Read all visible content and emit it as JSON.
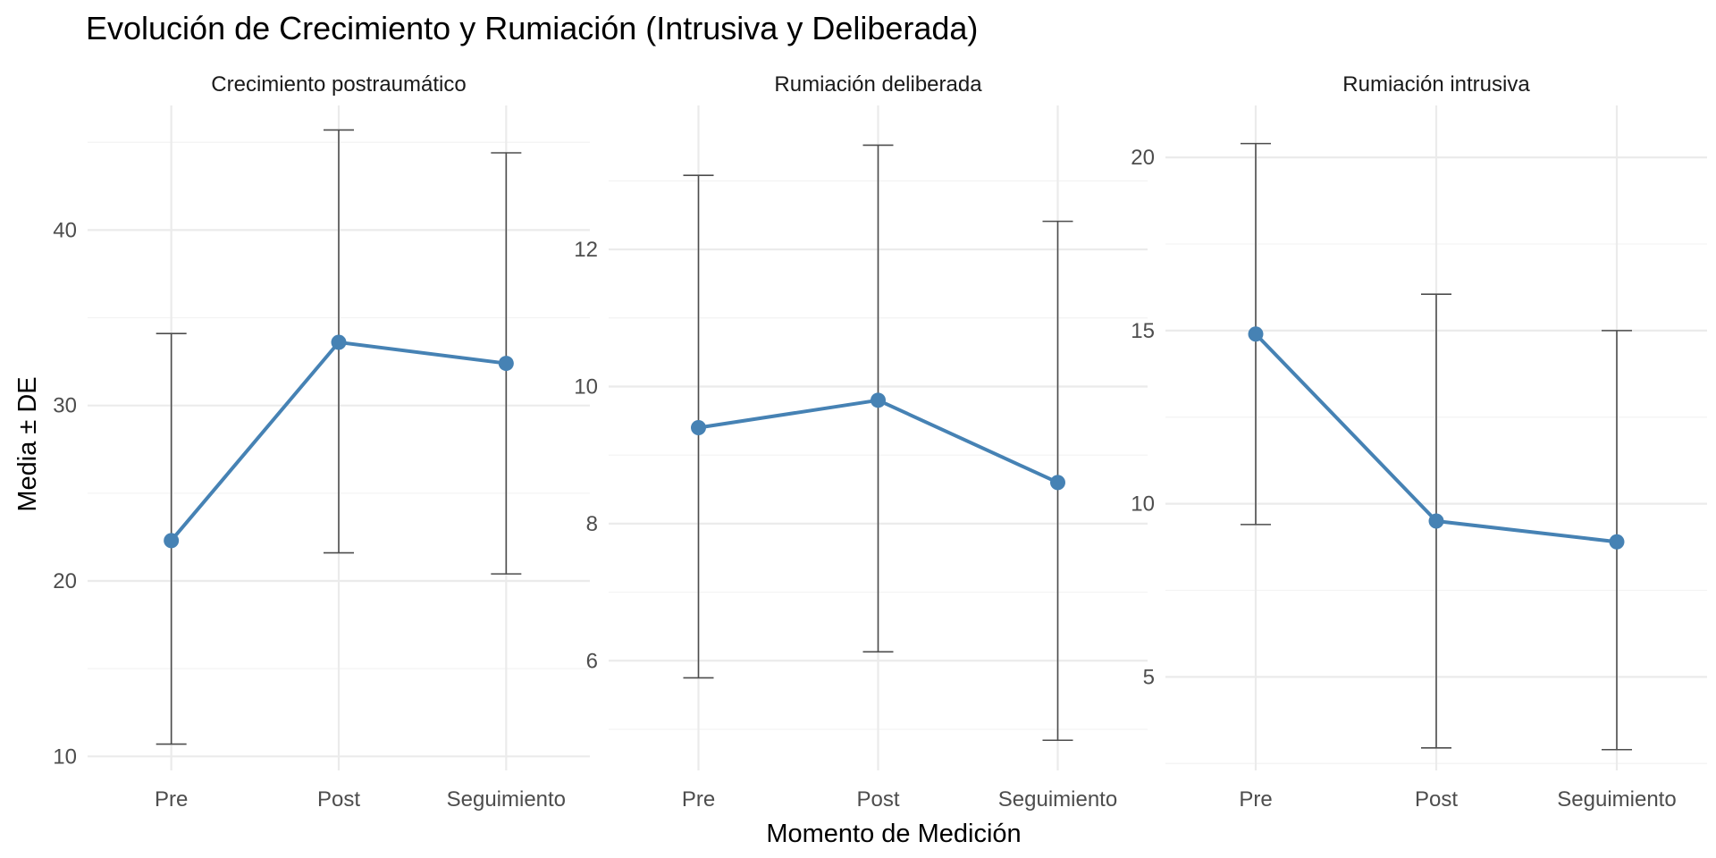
{
  "chart_data": {
    "type": "line",
    "title": "Evolución de Crecimiento y Rumiación (Intrusiva y Deliberada)",
    "xlabel": "Momento de Medición",
    "ylabel": "Media ± DE",
    "categories": [
      "Pre",
      "Post",
      "Seguimiento"
    ],
    "grid": true,
    "legend": "none",
    "color": "#4682B4",
    "panels": [
      {
        "name": "Crecimiento postraumático",
        "ylim": [
          9.2,
          47.1
        ],
        "yticks": [
          10,
          20,
          30,
          40
        ],
        "mean": [
          22.3,
          33.6,
          32.4
        ],
        "lower": [
          10.7,
          21.6,
          20.4
        ],
        "upper": [
          34.1,
          45.7,
          44.4
        ]
      },
      {
        "name": "Rumiación deliberada",
        "ylim": [
          4.4,
          14.1
        ],
        "yticks": [
          6,
          8,
          10,
          12
        ],
        "mean": [
          9.4,
          9.8,
          8.6
        ],
        "lower": [
          5.75,
          6.13,
          4.84
        ],
        "upper": [
          13.08,
          13.52,
          12.41
        ]
      },
      {
        "name": "Rumiación intrusiva",
        "ylim": [
          2.3,
          21.5
        ],
        "yticks": [
          5,
          10,
          15,
          20
        ],
        "mean": [
          14.9,
          9.5,
          8.9
        ],
        "lower": [
          9.4,
          2.95,
          2.9
        ],
        "upper": [
          20.4,
          16.05,
          15.0
        ]
      }
    ]
  }
}
